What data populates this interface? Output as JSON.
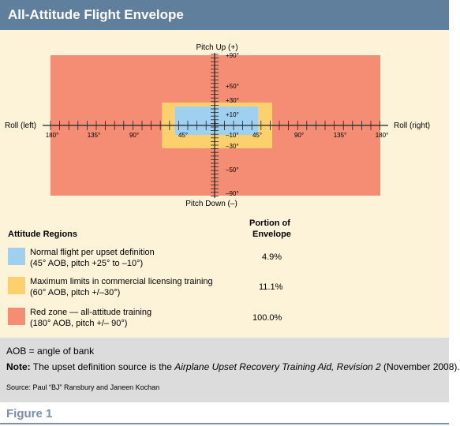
{
  "header": {
    "title": "All-Attitude Flight Envelope"
  },
  "diagram": {
    "pitch_up_label": "Pitch Up (+)",
    "pitch_down_label": "Pitch Down (–)",
    "roll_left_label": "Roll (left)",
    "roll_right_label": "Roll (right)",
    "pitch_ticks": [
      "+90°",
      "+50°",
      "+30°",
      "+10°",
      "–10°",
      "–30°",
      "–50°",
      "–90°"
    ],
    "roll_ticks_left": [
      "180°",
      "135°",
      "90°",
      "45°"
    ],
    "roll_ticks_right": [
      "45°",
      "90°",
      "135°",
      "180°"
    ],
    "colors": {
      "red_zone": "#f58c74",
      "max_limits": "#fdd06e",
      "normal": "#9fd0ef",
      "panel": "#fdf3d8",
      "header": "#5f7f9c"
    }
  },
  "legend": {
    "col_regions": "Attitude Regions",
    "col_portion_line1": "Portion of",
    "col_portion_line2": "Envelope",
    "rows": [
      {
        "line1": "Normal flight per upset definition",
        "line2": "(45° AOB, pitch +25° to –10°)",
        "portion": "4.9%",
        "color": "#9fd0ef"
      },
      {
        "line1": "Maximum limits in commercial licensing training",
        "line2": "(60° AOB, pitch +/–30°)",
        "portion": "11.1%",
        "color": "#fdd06e"
      },
      {
        "line1": "Red zone — all-attitude training",
        "line2": "(180° AOB, pitch +/– 90°)",
        "portion": "100.0%",
        "color": "#f58c74"
      }
    ]
  },
  "footer": {
    "aob_note": "AOB = angle of bank",
    "note_label": "Note:",
    "note_text_1": " The upset definition source is the ",
    "note_italic": "Airplane Upset Recovery Training Aid, Revision 2",
    "note_text_2": " (November 2008).",
    "source": "Source: Paul “BJ” Ransbury and Janeen Kochan"
  },
  "figure_label": "Figure 1"
}
